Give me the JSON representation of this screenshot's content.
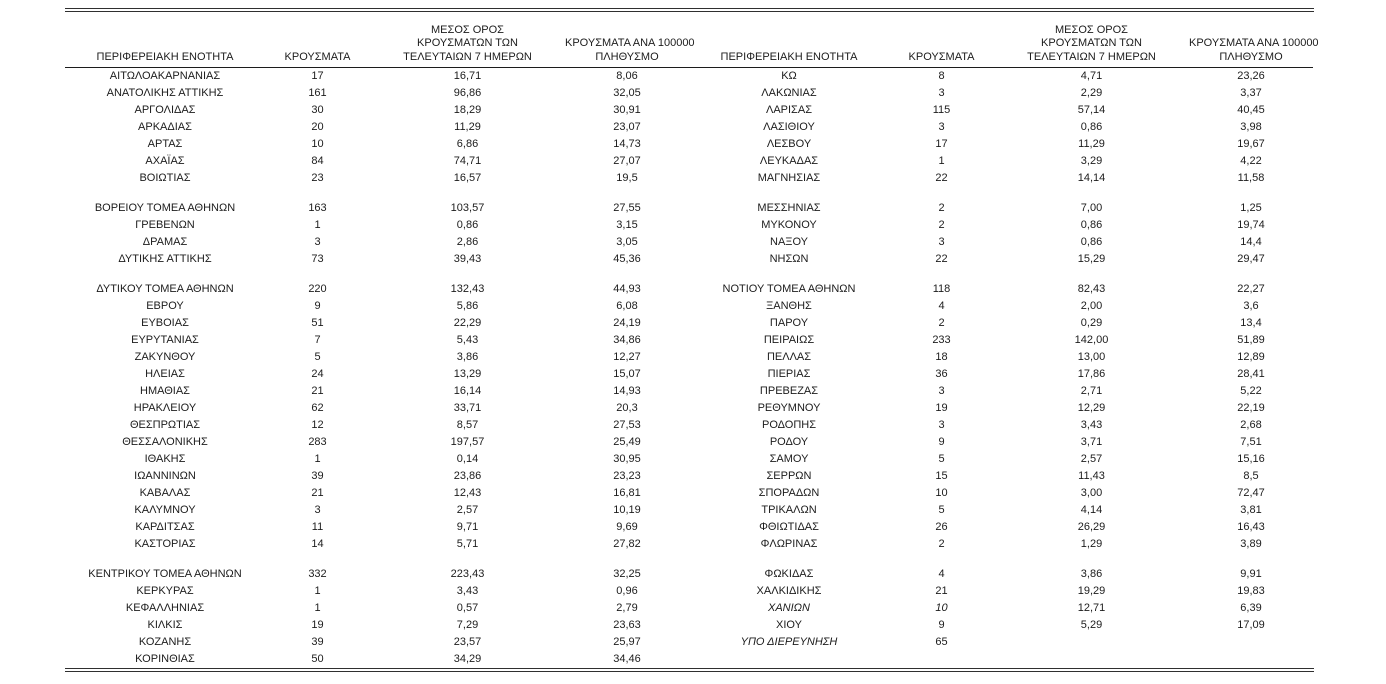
{
  "page": {
    "background_color": "#ffffff",
    "text_color": "#1c1c1c",
    "border_color": "#2f2f2f"
  },
  "columns": [
    {
      "key": "name",
      "label_lines": [
        "ΠΕΡΙΦΕΡΕΙΑΚΗ ΕΝΟΤΗΤΑ"
      ]
    },
    {
      "key": "cases",
      "label_lines": [
        "ΚΡΟΥΣΜΑΤΑ"
      ]
    },
    {
      "key": "avg7",
      "label_lines": [
        "ΜΕΣΟΣ ΟΡΟΣ",
        "ΚΡΟΥΣΜΑΤΩΝ ΤΩΝ",
        "ΤΕΛΕΥΤΑΙΩΝ 7 ΗΜΕΡΩΝ"
      ]
    },
    {
      "key": "per100k",
      "label_lines": [
        "ΚΡΟΥΣΜΑΤΑ ΑΝΑ 100000",
        "ΠΛΗΘΥΣΜΟ"
      ]
    }
  ],
  "tables": {
    "left": {
      "rows": [
        {
          "name": "ΑΙΤΩΛΟΑΚΑΡΝΑΝΙΑΣ",
          "cases": "17",
          "avg7": "16,71",
          "per100k": "8,06"
        },
        {
          "name": "ΑΝΑΤΟΛΙΚΗΣ ΑΤΤΙΚΗΣ",
          "cases": "161",
          "avg7": "96,86",
          "per100k": "32,05"
        },
        {
          "name": "ΑΡΓΟΛΙΔΑΣ",
          "cases": "30",
          "avg7": "18,29",
          "per100k": "30,91"
        },
        {
          "name": "ΑΡΚΑΔΙΑΣ",
          "cases": "20",
          "avg7": "11,29",
          "per100k": "23,07"
        },
        {
          "name": "ΑΡΤΑΣ",
          "cases": "10",
          "avg7": "6,86",
          "per100k": "14,73"
        },
        {
          "name": "ΑΧΑΪΑΣ",
          "cases": "84",
          "avg7": "74,71",
          "per100k": "27,07"
        },
        {
          "name": "ΒΟΙΩΤΙΑΣ",
          "cases": "23",
          "avg7": "16,57",
          "per100k": "19,5"
        },
        {
          "spacer": true
        },
        {
          "name": "ΒΟΡΕΙΟΥ ΤΟΜΕΑ ΑΘΗΝΩΝ",
          "cases": "163",
          "avg7": "103,57",
          "per100k": "27,55"
        },
        {
          "name": "ΓΡΕΒΕΝΩΝ",
          "cases": "1",
          "avg7": "0,86",
          "per100k": "3,15"
        },
        {
          "name": "ΔΡΑΜΑΣ",
          "cases": "3",
          "avg7": "2,86",
          "per100k": "3,05"
        },
        {
          "name": "ΔΥΤΙΚΗΣ ΑΤΤΙΚΗΣ",
          "cases": "73",
          "avg7": "39,43",
          "per100k": "45,36"
        },
        {
          "spacer": true
        },
        {
          "name": "ΔΥΤΙΚΟΥ ΤΟΜΕΑ ΑΘΗΝΩΝ",
          "cases": "220",
          "avg7": "132,43",
          "per100k": "44,93"
        },
        {
          "name": "ΕΒΡΟΥ",
          "cases": "9",
          "avg7": "5,86",
          "per100k": "6,08"
        },
        {
          "name": "ΕΥΒΟΙΑΣ",
          "cases": "51",
          "avg7": "22,29",
          "per100k": "24,19"
        },
        {
          "name": "ΕΥΡΥΤΑΝΙΑΣ",
          "cases": "7",
          "avg7": "5,43",
          "per100k": "34,86"
        },
        {
          "name": "ΖΑΚΥΝΘΟΥ",
          "cases": "5",
          "avg7": "3,86",
          "per100k": "12,27"
        },
        {
          "name": "ΗΛΕΙΑΣ",
          "cases": "24",
          "avg7": "13,29",
          "per100k": "15,07"
        },
        {
          "name": "ΗΜΑΘΙΑΣ",
          "cases": "21",
          "avg7": "16,14",
          "per100k": "14,93"
        },
        {
          "name": "ΗΡΑΚΛΕΙΟΥ",
          "cases": "62",
          "avg7": "33,71",
          "per100k": "20,3"
        },
        {
          "name": "ΘΕΣΠΡΩΤΙΑΣ",
          "cases": "12",
          "avg7": "8,57",
          "per100k": "27,53"
        },
        {
          "name": "ΘΕΣΣΑΛΟΝΙΚΗΣ",
          "cases": "283",
          "avg7": "197,57",
          "per100k": "25,49"
        },
        {
          "name": "ΙΘΑΚΗΣ",
          "cases": "1",
          "avg7": "0,14",
          "per100k": "30,95"
        },
        {
          "name": "ΙΩΑΝΝΙΝΩΝ",
          "cases": "39",
          "avg7": "23,86",
          "per100k": "23,23"
        },
        {
          "name": "ΚΑΒΑΛΑΣ",
          "cases": "21",
          "avg7": "12,43",
          "per100k": "16,81"
        },
        {
          "name": "ΚΑΛΥΜΝΟΥ",
          "cases": "3",
          "avg7": "2,57",
          "per100k": "10,19"
        },
        {
          "name": "ΚΑΡΔΙΤΣΑΣ",
          "cases": "11",
          "avg7": "9,71",
          "per100k": "9,69"
        },
        {
          "name": "ΚΑΣΤΟΡΙΑΣ",
          "cases": "14",
          "avg7": "5,71",
          "per100k": "27,82"
        },
        {
          "spacer": true
        },
        {
          "name": "ΚΕΝΤΡΙΚΟΥ ΤΟΜΕΑ ΑΘΗΝΩΝ",
          "cases": "332",
          "avg7": "223,43",
          "per100k": "32,25"
        },
        {
          "name": "ΚΕΡΚΥΡΑΣ",
          "cases": "1",
          "avg7": "3,43",
          "per100k": "0,96"
        },
        {
          "name": "ΚΕΦΑΛΛΗΝΙΑΣ",
          "cases": "1",
          "avg7": "0,57",
          "per100k": "2,79"
        },
        {
          "name": "ΚΙΛΚΙΣ",
          "cases": "19",
          "avg7": "7,29",
          "per100k": "23,63"
        },
        {
          "name": "ΚΟΖΑΝΗΣ",
          "cases": "39",
          "avg7": "23,57",
          "per100k": "25,97"
        },
        {
          "name": "ΚΟΡΙΝΘΙΑΣ",
          "cases": "50",
          "avg7": "34,29",
          "per100k": "34,46"
        }
      ]
    },
    "right": {
      "rows": [
        {
          "name": "ΚΩ",
          "cases": "8",
          "avg7": "4,71",
          "per100k": "23,26"
        },
        {
          "name": "ΛΑΚΩΝΙΑΣ",
          "cases": "3",
          "avg7": "2,29",
          "per100k": "3,37"
        },
        {
          "name": "ΛΑΡΙΣΑΣ",
          "cases": "115",
          "avg7": "57,14",
          "per100k": "40,45"
        },
        {
          "name": "ΛΑΣΙΘΙΟΥ",
          "cases": "3",
          "avg7": "0,86",
          "per100k": "3,98"
        },
        {
          "name": "ΛΕΣΒΟΥ",
          "cases": "17",
          "avg7": "11,29",
          "per100k": "19,67"
        },
        {
          "name": "ΛΕΥΚΑΔΑΣ",
          "cases": "1",
          "avg7": "3,29",
          "per100k": "4,22"
        },
        {
          "name": "ΜΑΓΝΗΣΙΑΣ",
          "cases": "22",
          "avg7": "14,14",
          "per100k": "11,58"
        },
        {
          "spacer": true
        },
        {
          "name": "ΜΕΣΣΗΝΙΑΣ",
          "cases": "2",
          "avg7": "7,00",
          "per100k": "1,25"
        },
        {
          "name": "ΜΥΚΟΝΟΥ",
          "cases": "2",
          "avg7": "0,86",
          "per100k": "19,74"
        },
        {
          "name": "ΝΑΞΟΥ",
          "cases": "3",
          "avg7": "0,86",
          "per100k": "14,4"
        },
        {
          "name": "ΝΗΣΩΝ",
          "cases": "22",
          "avg7": "15,29",
          "per100k": "29,47"
        },
        {
          "spacer": true
        },
        {
          "name": "ΝΟΤΙΟΥ ΤΟΜΕΑ ΑΘΗΝΩΝ",
          "cases": "118",
          "avg7": "82,43",
          "per100k": "22,27"
        },
        {
          "name": "ΞΑΝΘΗΣ",
          "cases": "4",
          "avg7": "2,00",
          "per100k": "3,6"
        },
        {
          "name": "ΠΑΡΟΥ",
          "cases": "2",
          "avg7": "0,29",
          "per100k": "13,4"
        },
        {
          "name": "ΠΕΙΡΑΙΩΣ",
          "cases": "233",
          "avg7": "142,00",
          "per100k": "51,89"
        },
        {
          "name": "ΠΕΛΛΑΣ",
          "cases": "18",
          "avg7": "13,00",
          "per100k": "12,89"
        },
        {
          "name": "ΠΙΕΡΙΑΣ",
          "cases": "36",
          "avg7": "17,86",
          "per100k": "28,41"
        },
        {
          "name": "ΠΡΕΒΕΖΑΣ",
          "cases": "3",
          "avg7": "2,71",
          "per100k": "5,22"
        },
        {
          "name": "ΡΕΘΥΜΝΟΥ",
          "cases": "19",
          "avg7": "12,29",
          "per100k": "22,19"
        },
        {
          "name": "ΡΟΔΟΠΗΣ",
          "cases": "3",
          "avg7": "3,43",
          "per100k": "2,68"
        },
        {
          "name": "ΡΟΔΟΥ",
          "cases": "9",
          "avg7": "3,71",
          "per100k": "7,51"
        },
        {
          "name": "ΣΑΜΟΥ",
          "cases": "5",
          "avg7": "2,57",
          "per100k": "15,16"
        },
        {
          "name": "ΣΕΡΡΩΝ",
          "cases": "15",
          "avg7": "11,43",
          "per100k": "8,5"
        },
        {
          "name": "ΣΠΟΡΑΔΩΝ",
          "cases": "10",
          "avg7": "3,00",
          "per100k": "72,47"
        },
        {
          "name": "ΤΡΙΚΑΛΩΝ",
          "cases": "5",
          "avg7": "4,14",
          "per100k": "3,81"
        },
        {
          "name": "ΦΘΙΩΤΙΔΑΣ",
          "cases": "26",
          "avg7": "26,29",
          "per100k": "16,43"
        },
        {
          "name": "ΦΛΩΡΙΝΑΣ",
          "cases": "2",
          "avg7": "1,29",
          "per100k": "3,89"
        },
        {
          "spacer": true
        },
        {
          "name": "ΦΩΚΙΔΑΣ",
          "cases": "4",
          "avg7": "3,86",
          "per100k": "9,91"
        },
        {
          "name": "ΧΑΛΚΙΔΙΚΗΣ",
          "cases": "21",
          "avg7": "19,29",
          "per100k": "19,83"
        },
        {
          "name": "ΧΑΝΙΩΝ",
          "cases": "10",
          "avg7": "12,71",
          "per100k": "6,39",
          "italic": [
            "name",
            "cases"
          ]
        },
        {
          "name": "ΧΙΟΥ",
          "cases": "9",
          "avg7": "5,29",
          "per100k": "17,09"
        },
        {
          "name": "ΥΠΟ ΔΙΕΡΕΥΝΗΣΗ",
          "cases": "65",
          "avg7": "",
          "per100k": "",
          "italic": [
            "name"
          ]
        }
      ]
    }
  }
}
